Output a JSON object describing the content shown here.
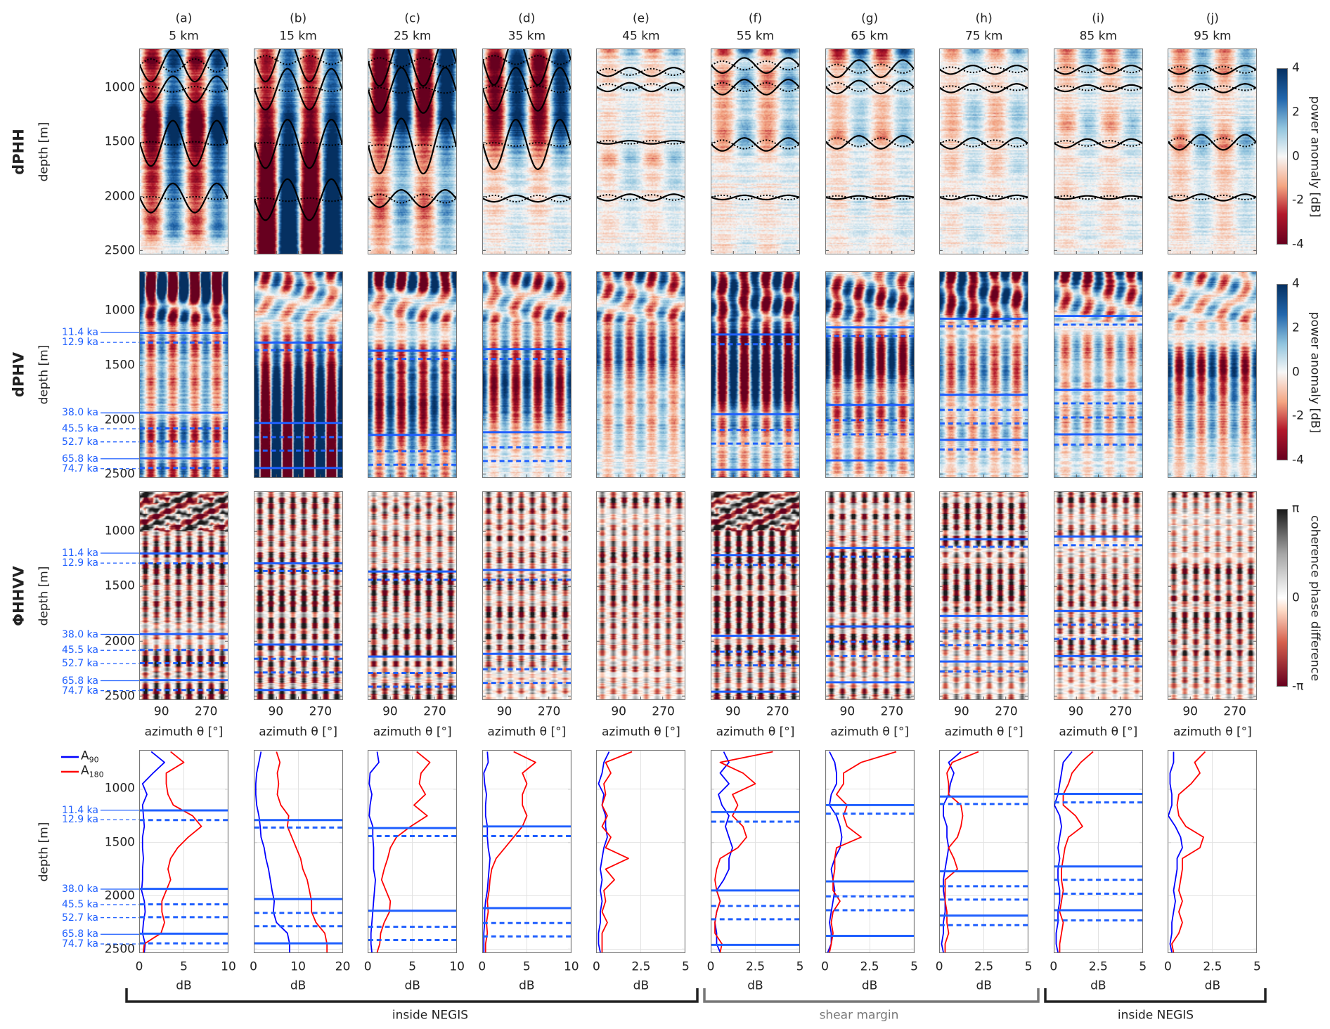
{
  "figure": {
    "columns": [
      {
        "letter": "(a)",
        "distance": "5 km"
      },
      {
        "letter": "(b)",
        "distance": "15 km"
      },
      {
        "letter": "(c)",
        "distance": "25 km"
      },
      {
        "letter": "(d)",
        "distance": "35 km"
      },
      {
        "letter": "(e)",
        "distance": "45 km"
      },
      {
        "letter": "(f)",
        "distance": "55 km"
      },
      {
        "letter": "(g)",
        "distance": "65 km"
      },
      {
        "letter": "(h)",
        "distance": "75 km"
      },
      {
        "letter": "(i)",
        "distance": "85 km"
      },
      {
        "letter": "(j)",
        "distance": "95 km"
      }
    ],
    "row_labels": [
      {
        "title": "dPHH",
        "axis": "depth [m]"
      },
      {
        "title": "dPHV",
        "axis": "depth [m]"
      },
      {
        "title": "ΦHHVV",
        "axis": "depth [m]"
      },
      {
        "title": "",
        "axis": "depth [m]"
      }
    ],
    "depth_ticks": [
      "1000",
      "1500",
      "2000",
      "2500"
    ],
    "azimuth_ticks": [
      "90",
      "270"
    ],
    "azimuth_label": "azimuth θ [°]",
    "db_label": "dB",
    "colorbars": [
      {
        "label": "power anomaly [dB]",
        "ticks": [
          "4",
          "2",
          "0",
          "-2",
          "-4"
        ],
        "type": "rdbu"
      },
      {
        "label": "power anomaly [dB]",
        "ticks": [
          "4",
          "2",
          "0",
          "-2",
          "-4"
        ],
        "type": "rdbu"
      },
      {
        "label": "coherence phase difference",
        "ticks": [
          "π",
          "0",
          "-π"
        ],
        "type": "phase"
      }
    ],
    "legend": [
      {
        "name": "A",
        "sub": "90",
        "color": "#0000ff"
      },
      {
        "name": "A",
        "sub": "180",
        "color": "#ff0000"
      }
    ],
    "regions": [
      {
        "label": "inside NEGIS",
        "color": "#222222"
      },
      {
        "label": "shear margin",
        "color": "#777777"
      },
      {
        "label": "inside NEGIS",
        "color": "#222222"
      }
    ],
    "colors": {
      "horizon": "#1f5fff",
      "a90": "#0000ff",
      "a180": "#ff0000",
      "fit": "#000000"
    }
  },
  "chart_data": {
    "type": "line",
    "ylabel": "depth [m]",
    "ylim": [
      640,
      2530
    ],
    "heatmap_xlim": [
      0,
      360
    ],
    "heatmap_clim_db": [
      -4,
      4
    ],
    "depth": [
      650,
      750,
      850,
      950,
      1050,
      1150,
      1250,
      1350,
      1450,
      1550,
      1650,
      1750,
      1850,
      1950,
      2050,
      2150,
      2250,
      2350,
      2450,
      2530
    ],
    "horizon_ages": [
      {
        "age": "11.4 ka",
        "style": "solid"
      },
      {
        "age": "12.9 ka",
        "style": "dashed"
      },
      {
        "age": "38.0 ka",
        "style": "solid"
      },
      {
        "age": "45.5 ka",
        "style": "dashed"
      },
      {
        "age": "52.7 ka",
        "style": "dashed"
      },
      {
        "age": "65.8 ka",
        "style": "solid"
      },
      {
        "age": "74.7 ka",
        "style": "dashed"
      }
    ],
    "panels": [
      {
        "id": "a",
        "xlim": [
          0,
          10
        ],
        "xticks": [
          "0",
          "5",
          "10"
        ],
        "A90": [
          1.3,
          2.8,
          1.5,
          0.3,
          0.8,
          0.3,
          0.4,
          0.5,
          0.3,
          0.3,
          0.4,
          0.3,
          0.3,
          0.2,
          0.5,
          0.6,
          0.4,
          0.3,
          0.6,
          0.5
        ],
        "A180": [
          3.5,
          5.0,
          3.0,
          3.0,
          3.2,
          3.8,
          6.0,
          7.0,
          5.5,
          4.3,
          3.5,
          3.2,
          3.5,
          3.0,
          2.5,
          2.5,
          2.8,
          2.4,
          0.5,
          0.4
        ],
        "horizon_depths": [
          1200,
          1290,
          1935,
          2080,
          2200,
          2355,
          2445
        ],
        "dphh_fits": [
          [
            790,
            150,
            60
          ],
          [
            1010,
            120,
            25
          ],
          [
            1510,
            210,
            15
          ],
          [
            2015,
            135,
            12
          ]
        ]
      },
      {
        "id": "b",
        "xlim": [
          0,
          20
        ],
        "xticks": [
          "0",
          "10",
          "20"
        ],
        "A90": [
          1.5,
          1.0,
          0.5,
          0.3,
          0.3,
          0.5,
          1.0,
          1.3,
          1.5,
          2.2,
          2.6,
          3.2,
          3.6,
          4.0,
          4.5,
          4.3,
          5.0,
          7.5,
          8.0,
          8.0
        ],
        "A180": [
          5.0,
          5.8,
          5.2,
          5.5,
          5.2,
          6.0,
          7.8,
          7.5,
          8.5,
          9.5,
          10.5,
          11.0,
          12.0,
          12.5,
          13.0,
          13.0,
          14.0,
          16.0,
          16.5,
          16.5
        ],
        "horizon_depths": [
          1290,
          1360,
          2030,
          2160,
          2285,
          2445,
          null
        ],
        "dphh_fits": [
          [
            740,
            200,
            40
          ],
          [
            1010,
            190,
            20
          ],
          [
            1515,
            225,
            12
          ],
          [
            2030,
            190,
            15
          ]
        ]
      },
      {
        "id": "c",
        "xlim": [
          0,
          10
        ],
        "xticks": [
          "0",
          "5",
          "10"
        ],
        "A90": [
          1.0,
          1.2,
          0.2,
          0.1,
          0.4,
          0.2,
          0.1,
          0.5,
          0.5,
          0.6,
          0.6,
          0.6,
          0.8,
          0.7,
          0.6,
          0.5,
          0.4,
          0.3,
          0.3,
          0.4
        ],
        "A180": [
          5.5,
          7.0,
          6.0,
          5.8,
          6.5,
          5.2,
          6.7,
          4.8,
          3.2,
          2.5,
          2.2,
          1.8,
          1.5,
          2.0,
          2.5,
          2.4,
          1.8,
          1.4,
          1.3,
          1.0
        ],
        "horizon_depths": [
          1365,
          1440,
          2140,
          2290,
          2415,
          null,
          null
        ],
        "dphh_fits": [
          [
            760,
            220,
            40
          ],
          [
            1020,
            210,
            25
          ],
          [
            1535,
            255,
            10
          ],
          [
            2020,
            80,
            40
          ]
        ]
      },
      {
        "id": "d",
        "xlim": [
          0,
          10
        ],
        "xticks": [
          "0",
          "5",
          "10"
        ],
        "A90": [
          0.5,
          0.6,
          0.1,
          0.2,
          0.4,
          0.3,
          0.3,
          0.5,
          0.5,
          0.6,
          0.8,
          0.7,
          0.6,
          0.5,
          0.3,
          0.2,
          0.2,
          0.1,
          0.1,
          0.1
        ],
        "A180": [
          3.5,
          6.0,
          4.5,
          5.0,
          4.5,
          4.5,
          5.0,
          4.5,
          3.5,
          2.5,
          1.5,
          1.0,
          0.8,
          0.7,
          0.5,
          0.6,
          0.4,
          0.5,
          0.3,
          0.3
        ],
        "horizon_depths": [
          1350,
          1440,
          2115,
          2255,
          2380,
          null,
          null
        ],
        "dphh_fits": [
          [
            740,
            230,
            40
          ],
          [
            1010,
            200,
            30
          ],
          [
            1520,
            230,
            15
          ],
          [
            2020,
            30,
            30
          ]
        ]
      },
      {
        "id": "e",
        "xlim": [
          0,
          5
        ],
        "xticks": [
          "0",
          "2.5",
          "5"
        ],
        "A90": [
          0.7,
          0.4,
          0.3,
          0.1,
          0.4,
          0.3,
          0.5,
          0.5,
          0.6,
          0.4,
          0.3,
          0.2,
          0.3,
          0.2,
          0.3,
          0.2,
          0.2,
          0.1,
          0.1,
          0.2
        ],
        "A180": [
          2.0,
          0.5,
          0.8,
          0.4,
          0.5,
          0.3,
          0.6,
          0.3,
          0.8,
          0.5,
          1.8,
          0.5,
          1.0,
          0.4,
          0.5,
          0.3,
          0.6,
          0.3,
          0.3,
          0.3
        ],
        "horizon_depths": [
          null,
          null,
          null,
          null,
          null,
          null,
          null
        ],
        "dphh_fits": [
          [
            850,
            40,
            30
          ],
          [
            990,
            40,
            30
          ],
          [
            1500,
            15,
            15
          ],
          [
            2010,
            30,
            25
          ]
        ]
      },
      {
        "id": "f",
        "xlim": [
          0,
          5
        ],
        "xticks": [
          "0",
          "2.5",
          "5"
        ],
        "A90": [
          0.7,
          1.0,
          0.5,
          1.0,
          0.4,
          0.6,
          1.0,
          0.8,
          1.0,
          1.2,
          1.0,
          1.0,
          0.7,
          0.3,
          0.5,
          0.3,
          0.2,
          0.3,
          0.3,
          0.5
        ],
        "A180": [
          3.5,
          0.5,
          1.8,
          2.5,
          1.2,
          1.5,
          1.2,
          1.8,
          2.0,
          1.5,
          0.5,
          0.3,
          0.2,
          0.3,
          0.5,
          0.3,
          0.2,
          0.2,
          0.6,
          0.5
        ],
        "horizon_depths": [
          1215,
          1305,
          1950,
          2095,
          2220,
          2460,
          null
        ],
        "dphh_fits": [
          [
            790,
            70,
            40
          ],
          [
            990,
            70,
            40
          ],
          [
            1520,
            60,
            40
          ],
          [
            2010,
            20,
            20
          ]
        ]
      },
      {
        "id": "g",
        "xlim": [
          0,
          5
        ],
        "xticks": [
          "0",
          "2.5",
          "5"
        ],
        "A90": [
          0.2,
          0.5,
          0.6,
          0.6,
          0.3,
          0.2,
          0.6,
          0.8,
          0.9,
          0.8,
          0.5,
          0.3,
          0.4,
          0.5,
          0.4,
          0.3,
          0.2,
          0.3,
          0.3,
          0.1
        ],
        "A180": [
          4.0,
          2.0,
          1.0,
          1.0,
          0.6,
          1.2,
          1.0,
          1.2,
          2.0,
          0.6,
          0.5,
          0.5,
          0.4,
          0.4,
          0.8,
          0.4,
          0.3,
          0.4,
          0.3,
          0.2
        ],
        "horizon_depths": [
          1150,
          1230,
          1865,
          2005,
          2135,
          2375,
          null
        ],
        "dphh_fits": [
          [
            820,
            80,
            40
          ],
          [
            990,
            60,
            40
          ],
          [
            1500,
            60,
            40
          ],
          [
            2010,
            15,
            15
          ]
        ]
      },
      {
        "id": "h",
        "xlim": [
          0,
          5
        ],
        "xticks": [
          "0",
          "2.5",
          "5"
        ],
        "A90": [
          1.2,
          0.5,
          0.8,
          0.6,
          0.5,
          0.2,
          0.2,
          0.4,
          0.4,
          0.5,
          0.4,
          0.3,
          0.2,
          0.2,
          0.3,
          0.3,
          0.2,
          0.2,
          0.1,
          0.2
        ],
        "A180": [
          2.2,
          0.7,
          0.4,
          0.5,
          0.5,
          1.2,
          1.3,
          1.2,
          1.0,
          0.5,
          0.8,
          1.0,
          0.3,
          0.3,
          0.3,
          0.4,
          0.4,
          0.5,
          0.3,
          0.3
        ],
        "horizon_depths": [
          1070,
          1140,
          1770,
          1910,
          2035,
          2185,
          2275
        ],
        "dphh_fits": [
          [
            830,
            40,
            25
          ],
          [
            1000,
            40,
            20
          ],
          [
            1510,
            50,
            30
          ],
          [
            2010,
            20,
            15
          ]
        ]
      },
      {
        "id": "i",
        "xlim": [
          0,
          5
        ],
        "xticks": [
          "0",
          "2.5",
          "5"
        ],
        "A90": [
          1.0,
          0.5,
          0.4,
          0.3,
          0.2,
          0.0,
          0.3,
          0.4,
          0.3,
          0.2,
          0.3,
          0.2,
          0.2,
          0.3,
          0.3,
          0.2,
          0.2,
          0.1,
          0.1,
          0.2
        ],
        "A180": [
          2.2,
          1.5,
          1.0,
          0.8,
          0.5,
          0.5,
          1.2,
          1.6,
          0.8,
          0.6,
          0.5,
          0.4,
          0.4,
          0.5,
          0.4,
          0.3,
          0.5,
          0.4,
          0.3,
          0.3
        ],
        "horizon_depths": [
          1045,
          1125,
          1725,
          1850,
          1980,
          2135,
          2230
        ],
        "dphh_fits": [
          [
            830,
            40,
            25
          ],
          [
            1000,
            30,
            20
          ],
          [
            1510,
            40,
            25
          ],
          [
            2010,
            15,
            15
          ]
        ]
      },
      {
        "id": "j",
        "xlim": [
          0,
          5
        ],
        "xticks": [
          "0",
          "2.5",
          "5"
        ],
        "A90": [
          0.3,
          0.3,
          0.1,
          0.1,
          0.2,
          0.2,
          0.0,
          0.4,
          0.7,
          0.8,
          0.5,
          0.5,
          0.4,
          0.3,
          0.4,
          0.3,
          0.2,
          0.2,
          0.1,
          0.2
        ],
        "A180": [
          2.1,
          1.5,
          1.8,
          1.3,
          0.6,
          0.5,
          0.6,
          1.0,
          2.0,
          1.8,
          0.8,
          0.8,
          0.7,
          0.6,
          0.8,
          0.6,
          0.8,
          0.6,
          0.2,
          0.3
        ],
        "horizon_depths": [
          null,
          null,
          null,
          null,
          null,
          null,
          null
        ],
        "dphh_fits": [
          [
            830,
            40,
            30
          ],
          [
            1000,
            40,
            20
          ],
          [
            1500,
            70,
            40
          ],
          [
            2010,
            30,
            20
          ]
        ]
      }
    ]
  }
}
